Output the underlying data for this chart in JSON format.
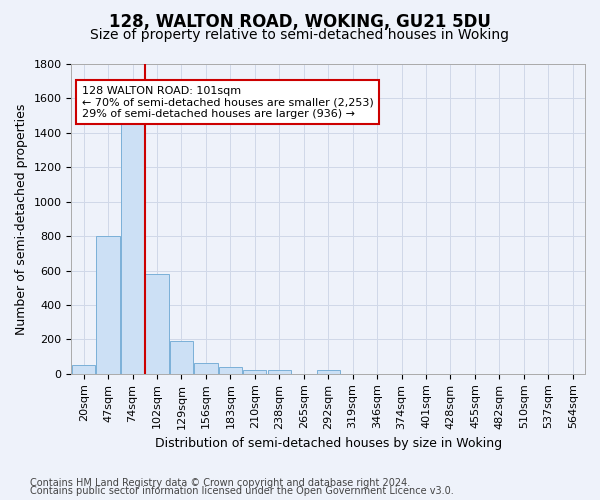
{
  "title": "128, WALTON ROAD, WOKING, GU21 5DU",
  "subtitle": "Size of property relative to semi-detached houses in Woking",
  "xlabel": "Distribution of semi-detached houses by size in Woking",
  "ylabel": "Number of semi-detached properties",
  "bin_labels": [
    "20sqm",
    "47sqm",
    "74sqm",
    "102sqm",
    "129sqm",
    "156sqm",
    "183sqm",
    "210sqm",
    "238sqm",
    "265sqm",
    "292sqm",
    "319sqm",
    "346sqm",
    "374sqm",
    "401sqm",
    "428sqm",
    "455sqm",
    "482sqm",
    "510sqm",
    "537sqm",
    "564sqm"
  ],
  "bar_heights": [
    50,
    800,
    1500,
    580,
    190,
    60,
    40,
    20,
    20,
    0,
    20,
    0,
    0,
    0,
    0,
    0,
    0,
    0,
    0,
    0,
    0
  ],
  "bar_color": "#cce0f5",
  "bar_edgecolor": "#7ab0d8",
  "property_bin_index": 3,
  "vline_color": "#cc0000",
  "annotation_text": "128 WALTON ROAD: 101sqm\n← 70% of semi-detached houses are smaller (2,253)\n29% of semi-detached houses are larger (936) →",
  "annotation_box_color": "#ffffff",
  "annotation_box_edgecolor": "#cc0000",
  "ylim": [
    0,
    1800
  ],
  "yticks": [
    0,
    200,
    400,
    600,
    800,
    1000,
    1200,
    1400,
    1600,
    1800
  ],
  "footnote1": "Contains HM Land Registry data © Crown copyright and database right 2024.",
  "footnote2": "Contains public sector information licensed under the Open Government Licence v3.0.",
  "title_fontsize": 12,
  "subtitle_fontsize": 10,
  "axis_fontsize": 9,
  "tick_fontsize": 8,
  "annotation_fontsize": 8,
  "footnote_fontsize": 7,
  "grid_color": "#d0d8e8",
  "background_color": "#eef2fa",
  "plot_bg_color": "#eef2fa"
}
